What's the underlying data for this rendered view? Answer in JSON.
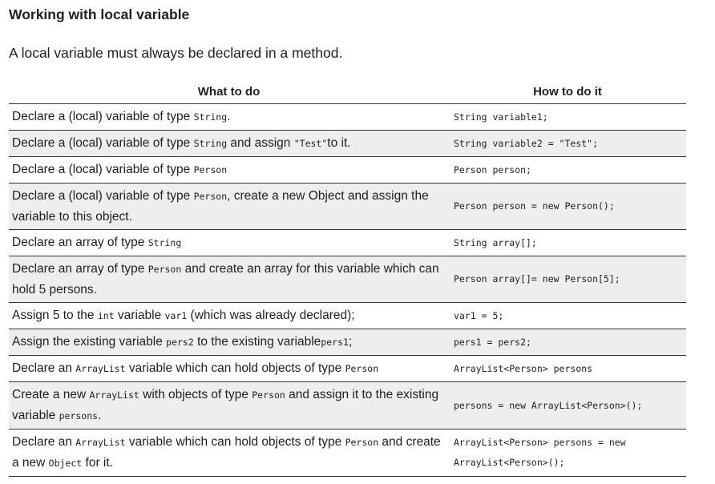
{
  "title": "Working with local variable",
  "intro": "A local variable must always be declared in a method.",
  "table": {
    "headers": {
      "what": "What to do",
      "how": "How to do it"
    },
    "rows": [
      {
        "what": [
          {
            "t": "Declare a (local) variable of type "
          },
          {
            "c": "String"
          },
          {
            "t": "."
          }
        ],
        "how": [
          "String variable1;"
        ]
      },
      {
        "what": [
          {
            "t": "Declare a (local) variable of type "
          },
          {
            "c": "String"
          },
          {
            "t": " and assign "
          },
          {
            "c": "\"Test\""
          },
          {
            "t": "to it."
          }
        ],
        "how": [
          "String variable2 = \"Test\";"
        ]
      },
      {
        "what": [
          {
            "t": "Declare a (local) variable of type "
          },
          {
            "c": "Person"
          }
        ],
        "how": [
          "Person person;"
        ]
      },
      {
        "what": [
          {
            "t": "Declare a (local) variable of type "
          },
          {
            "c": "Person"
          },
          {
            "t": ", create a new Object and assign the variable to this object."
          }
        ],
        "how": [
          "Person person = new Person();"
        ]
      },
      {
        "what": [
          {
            "t": "Declare an array of type "
          },
          {
            "c": "String"
          }
        ],
        "how": [
          "String array[];"
        ]
      },
      {
        "what": [
          {
            "t": "Declare an array of type "
          },
          {
            "c": "Person"
          },
          {
            "t": " and create an array for this variable which can hold 5 persons."
          }
        ],
        "how": [
          "Person array[]= new Person[5];"
        ]
      },
      {
        "what": [
          {
            "t": "Assign 5 to the "
          },
          {
            "c": "int"
          },
          {
            "t": " variable "
          },
          {
            "c": "var1"
          },
          {
            "t": " (which was already declared);"
          }
        ],
        "how": [
          "var1 = 5;"
        ]
      },
      {
        "what": [
          {
            "t": "Assign the existing variable "
          },
          {
            "c": "pers2"
          },
          {
            "t": " to the existing variable"
          },
          {
            "c": "pers1"
          },
          {
            "t": ";"
          }
        ],
        "how": [
          "pers1 = pers2;"
        ]
      },
      {
        "what": [
          {
            "t": "Declare an "
          },
          {
            "c": "ArrayList"
          },
          {
            "t": " variable which can hold objects of type "
          },
          {
            "c": "Person"
          }
        ],
        "how": [
          "ArrayList<Person> persons"
        ]
      },
      {
        "what": [
          {
            "t": "Create a new "
          },
          {
            "c": "ArrayList"
          },
          {
            "t": " with objects of type "
          },
          {
            "c": "Person"
          },
          {
            "t": " and assign it to the existing variable "
          },
          {
            "c": "persons"
          },
          {
            "t": "."
          }
        ],
        "how": [
          "persons = new ArrayList<Person>();"
        ]
      },
      {
        "what": [
          {
            "t": "Declare an "
          },
          {
            "c": "ArrayList"
          },
          {
            "t": " variable which can hold objects of type "
          },
          {
            "c": "Person"
          },
          {
            "t": " and create a new "
          },
          {
            "c": "Object"
          },
          {
            "t": " for it."
          }
        ],
        "how": [
          "ArrayList<Person> persons = new",
          "ArrayList<Person>();"
        ]
      }
    ]
  }
}
